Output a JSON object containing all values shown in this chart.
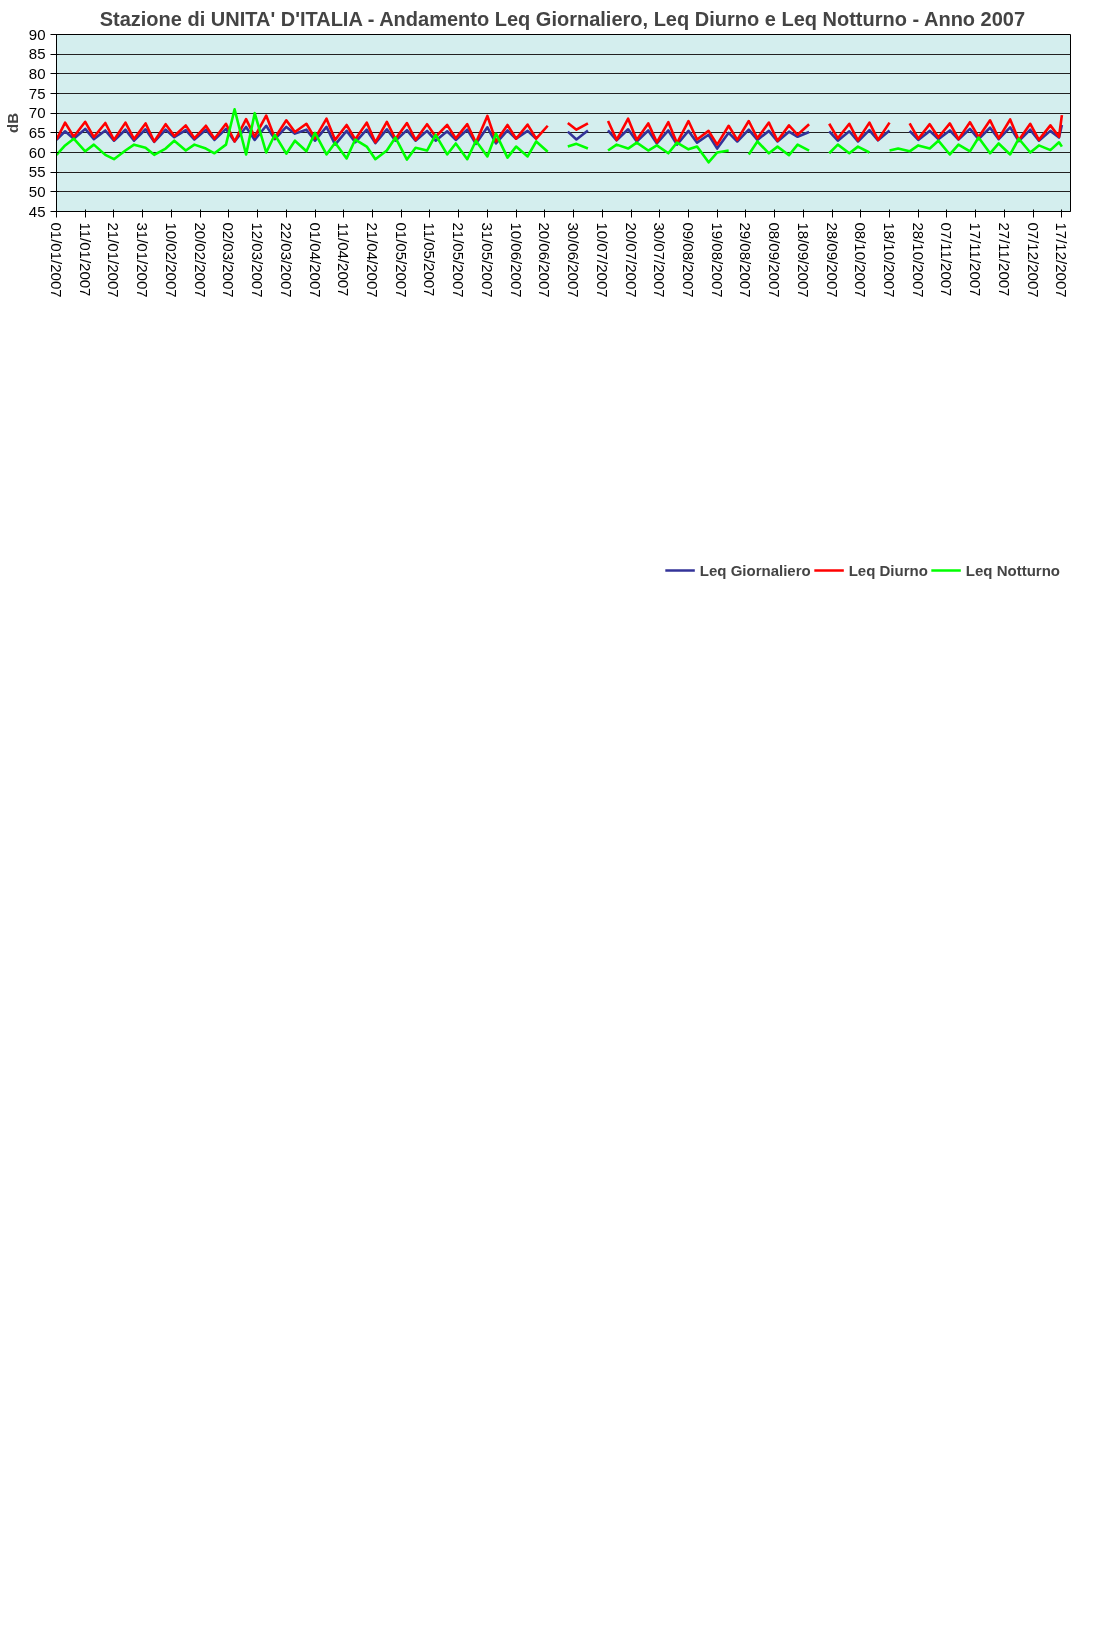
{
  "chart_data": {
    "type": "line",
    "title": "Stazione di UNITA' D'ITALIA - Andamento Leq Giornaliero, Leq Diurno e Leq Notturno - Anno 2007",
    "ylabel": "dB",
    "x": [
      "2007-01-01",
      "2007-01-04",
      "2007-01-07",
      "2007-01-11",
      "2007-01-14",
      "2007-01-18",
      "2007-01-21",
      "2007-01-25",
      "2007-01-28",
      "2007-02-01",
      "2007-02-04",
      "2007-02-08",
      "2007-02-11",
      "2007-02-15",
      "2007-02-18",
      "2007-02-22",
      "2007-02-25",
      "2007-03-01",
      "2007-03-04",
      "2007-03-08",
      "2007-03-11",
      "2007-03-15",
      "2007-03-18",
      "2007-03-22",
      "2007-03-25",
      "2007-03-29",
      "2007-04-01",
      "2007-04-05",
      "2007-04-08",
      "2007-04-12",
      "2007-04-15",
      "2007-04-19",
      "2007-04-22",
      "2007-04-26",
      "2007-04-29",
      "2007-05-03",
      "2007-05-06",
      "2007-05-10",
      "2007-05-13",
      "2007-05-17",
      "2007-05-20",
      "2007-05-24",
      "2007-05-27",
      "2007-05-31",
      "2007-06-03",
      "2007-06-07",
      "2007-06-10",
      "2007-06-14",
      "2007-06-17",
      "2007-06-21",
      "2007-06-24",
      "2007-06-28",
      "2007-07-01",
      "2007-07-05",
      "2007-07-08",
      "2007-07-12",
      "2007-07-15",
      "2007-07-19",
      "2007-07-22",
      "2007-07-26",
      "2007-07-29",
      "2007-08-02",
      "2007-08-05",
      "2007-08-09",
      "2007-08-12",
      "2007-08-16",
      "2007-08-19",
      "2007-08-23",
      "2007-08-26",
      "2007-08-30",
      "2007-09-02",
      "2007-09-06",
      "2007-09-09",
      "2007-09-13",
      "2007-09-16",
      "2007-09-20",
      "2007-09-23",
      "2007-09-27",
      "2007-09-30",
      "2007-10-04",
      "2007-10-07",
      "2007-10-11",
      "2007-10-14",
      "2007-10-18",
      "2007-10-21",
      "2007-10-25",
      "2007-10-28",
      "2007-11-01",
      "2007-11-04",
      "2007-11-08",
      "2007-11-11",
      "2007-11-15",
      "2007-11-18",
      "2007-11-22",
      "2007-11-25",
      "2007-11-29",
      "2007-12-02",
      "2007-12-06",
      "2007-12-09",
      "2007-12-13",
      "2007-12-16",
      "2007-12-17"
    ],
    "series": [
      {
        "name": "Leq Giornaliero",
        "color": "#333399",
        "values": [
          63.2,
          65.4,
          63.5,
          66.0,
          63.4,
          65.6,
          63.0,
          65.8,
          63.0,
          65.9,
          62.7,
          65.8,
          63.9,
          65.7,
          63.3,
          65.8,
          63.2,
          66.0,
          62.8,
          66.5,
          63.2,
          66.8,
          63.4,
          66.5,
          64.8,
          65.8,
          63.0,
          66.5,
          62.0,
          65.5,
          62.6,
          65.8,
          62.4,
          65.9,
          63.0,
          65.7,
          63.0,
          65.5,
          63.0,
          65.4,
          63.2,
          65.8,
          62.2,
          66.4,
          62.3,
          65.6,
          63.5,
          65.5,
          63.5,
          null,
          null,
          65.3,
          63.3,
          65.6,
          null,
          65.6,
          63.1,
          65.9,
          62.8,
          65.6,
          62.3,
          65.6,
          62.0,
          65.5,
          62.5,
          64.5,
          61.0,
          65.0,
          62.8,
          65.8,
          63.2,
          65.5,
          62.8,
          65.3,
          64.0,
          65.2,
          null,
          65.4,
          63.0,
          65.4,
          62.8,
          65.7,
          63.1,
          65.6,
          null,
          65.5,
          63.2,
          65.5,
          63.4,
          65.6,
          63.3,
          66.0,
          63.4,
          66.3,
          63.4,
          66.4,
          62.9,
          65.8,
          63.0,
          65.5,
          63.8,
          67.0
        ]
      },
      {
        "name": "Leq Diurno",
        "color": "#ff0000",
        "values": [
          63.3,
          67.6,
          64.0,
          67.8,
          63.9,
          67.5,
          63.2,
          67.6,
          63.4,
          67.4,
          62.8,
          67.2,
          64.2,
          66.9,
          63.6,
          66.8,
          63.5,
          67.3,
          62.8,
          68.5,
          64.0,
          69.4,
          63.7,
          68.2,
          65.2,
          67.3,
          63.6,
          68.6,
          63.2,
          67.0,
          63.3,
          67.6,
          62.6,
          67.8,
          63.4,
          67.5,
          63.2,
          67.2,
          64.0,
          67.0,
          63.6,
          67.2,
          62.5,
          69.3,
          62.8,
          67.0,
          63.5,
          67.1,
          63.5,
          66.8,
          null,
          67.5,
          65.8,
          67.4,
          null,
          68.0,
          63.2,
          68.6,
          63.2,
          67.4,
          62.6,
          67.7,
          62.4,
          68.0,
          63.3,
          65.5,
          62.0,
          66.8,
          63.2,
          68.0,
          63.6,
          67.6,
          63.0,
          66.9,
          64.5,
          67.2,
          null,
          67.3,
          63.6,
          67.3,
          63.1,
          67.6,
          63.2,
          67.6,
          null,
          67.4,
          63.5,
          67.2,
          63.8,
          67.4,
          63.4,
          67.7,
          63.9,
          68.2,
          63.6,
          68.4,
          63.1,
          67.3,
          63.2,
          66.9,
          64.0,
          69.5
        ]
      },
      {
        "name": "Leq Notturno",
        "color": "#00ff00",
        "values": [
          59.4,
          61.8,
          63.5,
          60.3,
          62.0,
          59.4,
          58.3,
          60.5,
          62.0,
          61.2,
          59.4,
          61.0,
          63.0,
          60.5,
          62.0,
          61.0,
          59.8,
          62.0,
          71.0,
          59.5,
          70.0,
          60.0,
          64.5,
          59.7,
          63.0,
          60.3,
          65.0,
          59.5,
          62.5,
          58.5,
          63.3,
          61.5,
          58.3,
          60.5,
          63.8,
          58.2,
          61.2,
          60.5,
          64.5,
          59.5,
          62.3,
          58.3,
          63.0,
          59.0,
          64.8,
          58.7,
          61.5,
          59.0,
          62.8,
          60.2,
          null,
          61.5,
          62.2,
          61.0,
          null,
          60.5,
          62.0,
          61.0,
          62.5,
          60.5,
          61.8,
          59.8,
          62.5,
          60.8,
          61.5,
          57.5,
          60.0,
          60.5,
          null,
          59.5,
          62.8,
          59.8,
          61.5,
          59.3,
          62.0,
          60.5,
          null,
          59.8,
          62.0,
          59.8,
          61.5,
          60.0,
          null,
          60.5,
          61.0,
          60.3,
          61.8,
          61.0,
          63.0,
          59.5,
          62.0,
          60.3,
          63.8,
          59.8,
          62.3,
          59.5,
          63.5,
          60.0,
          61.8,
          60.6,
          62.6,
          61.5
        ]
      }
    ],
    "xlim": [
      "2007-01-01",
      "2007-12-20"
    ],
    "xticks": [
      {
        "value": "2007-01-01",
        "label": "01/01/2007"
      },
      {
        "value": "2007-01-11",
        "label": "11/01/2007"
      },
      {
        "value": "2007-01-21",
        "label": "21/01/2007"
      },
      {
        "value": "2007-01-31",
        "label": "31/01/2007"
      },
      {
        "value": "2007-02-10",
        "label": "10/02/2007"
      },
      {
        "value": "2007-02-20",
        "label": "20/02/2007"
      },
      {
        "value": "2007-03-02",
        "label": "02/03/2007"
      },
      {
        "value": "2007-03-12",
        "label": "12/03/2007"
      },
      {
        "value": "2007-03-22",
        "label": "22/03/2007"
      },
      {
        "value": "2007-04-01",
        "label": "01/04/2007"
      },
      {
        "value": "2007-04-11",
        "label": "11/04/2007"
      },
      {
        "value": "2007-04-21",
        "label": "21/04/2007"
      },
      {
        "value": "2007-05-01",
        "label": "01/05/2007"
      },
      {
        "value": "2007-05-11",
        "label": "11/05/2007"
      },
      {
        "value": "2007-05-21",
        "label": "21/05/2007"
      },
      {
        "value": "2007-05-31",
        "label": "31/05/2007"
      },
      {
        "value": "2007-06-10",
        "label": "10/06/2007"
      },
      {
        "value": "2007-06-20",
        "label": "20/06/2007"
      },
      {
        "value": "2007-06-30",
        "label": "30/06/2007"
      },
      {
        "value": "2007-07-10",
        "label": "10/07/2007"
      },
      {
        "value": "2007-07-20",
        "label": "20/07/2007"
      },
      {
        "value": "2007-07-30",
        "label": "30/07/2007"
      },
      {
        "value": "2007-08-09",
        "label": "09/08/2007"
      },
      {
        "value": "2007-08-19",
        "label": "19/08/2007"
      },
      {
        "value": "2007-08-29",
        "label": "29/08/2007"
      },
      {
        "value": "2007-09-08",
        "label": "08/09/2007"
      },
      {
        "value": "2007-09-18",
        "label": "18/09/2007"
      },
      {
        "value": "2007-09-28",
        "label": "28/09/2007"
      },
      {
        "value": "2007-10-08",
        "label": "08/10/2007"
      },
      {
        "value": "2007-10-18",
        "label": "18/10/2007"
      },
      {
        "value": "2007-10-28",
        "label": "28/10/2007"
      },
      {
        "value": "2007-11-07",
        "label": "07/11/2007"
      },
      {
        "value": "2007-11-17",
        "label": "17/11/2007"
      },
      {
        "value": "2007-11-27",
        "label": "27/11/2007"
      },
      {
        "value": "2007-12-07",
        "label": "07/12/2007"
      },
      {
        "value": "2007-12-17",
        "label": "17/12/2007"
      }
    ],
    "ylim": [
      45,
      90
    ],
    "yticks": [
      45,
      50,
      55,
      60,
      65,
      70,
      75,
      80,
      85,
      90
    ],
    "grid": "y",
    "legend": "bottom",
    "marker": "none",
    "line_style": "solid"
  }
}
